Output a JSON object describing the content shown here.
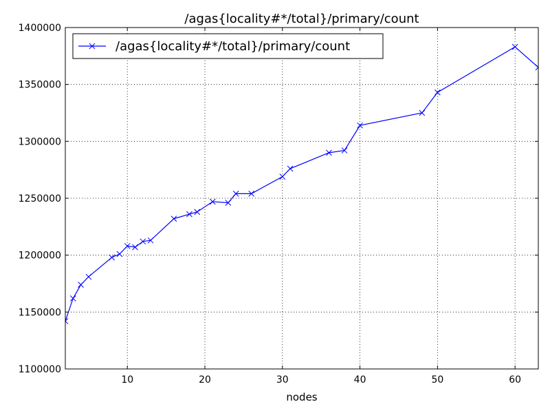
{
  "chart_data": {
    "type": "line",
    "title": "/agas{locality#*/total}/primary/count",
    "xlabel": "nodes",
    "ylabel": "",
    "xlim": [
      2,
      63
    ],
    "ylim": [
      1100000,
      1400000
    ],
    "x_ticks": [
      10,
      20,
      30,
      40,
      50,
      60
    ],
    "y_ticks": [
      1100000,
      1150000,
      1200000,
      1250000,
      1300000,
      1350000,
      1400000
    ],
    "x_tick_labels": [
      "10",
      "20",
      "30",
      "40",
      "50",
      "60"
    ],
    "y_tick_labels": [
      "1100000",
      "1150000",
      "1200000",
      "1250000",
      "1300000",
      "1350000",
      "1400000"
    ],
    "grid": true,
    "legend_position": "upper-left",
    "series": [
      {
        "name": "/agas{locality#*/total}/primary/count",
        "color": "#0000ff",
        "marker": "x",
        "x": [
          2,
          3,
          4,
          5,
          8,
          9,
          10,
          11,
          12,
          13,
          16,
          18,
          19,
          21,
          23,
          24,
          26,
          30,
          31,
          36,
          38,
          40,
          48,
          50,
          60,
          63
        ],
        "y": [
          1142000,
          1162000,
          1174000,
          1181000,
          1198000,
          1201000,
          1208000,
          1207000,
          1212000,
          1213000,
          1232000,
          1236000,
          1238000,
          1247000,
          1246000,
          1254000,
          1254000,
          1269000,
          1276000,
          1290000,
          1292000,
          1314000,
          1325000,
          1343000,
          1383000,
          1365000
        ]
      }
    ]
  }
}
